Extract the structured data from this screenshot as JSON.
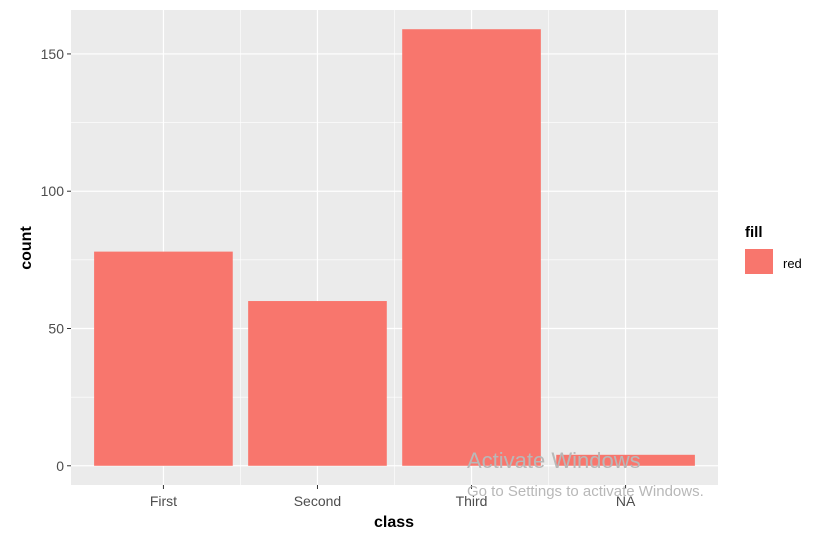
{
  "chart_data": {
    "type": "bar",
    "categories": [
      "First",
      "Second",
      "Third",
      "NA"
    ],
    "values": [
      78,
      60,
      159,
      4
    ],
    "xlabel": "class",
    "ylabel": "count",
    "ylim": [
      -7,
      166
    ],
    "yticks": [
      0,
      50,
      100,
      150
    ],
    "grid": true,
    "legend": {
      "title": "fill",
      "entries": [
        "red"
      ],
      "placement": "right"
    },
    "colors": {
      "bar": "#f8766d",
      "panel": "#ebebeb",
      "grid": "#ffffff"
    }
  },
  "watermark": {
    "title": "Activate Windows",
    "subtitle": "Go to Settings to activate Windows."
  }
}
